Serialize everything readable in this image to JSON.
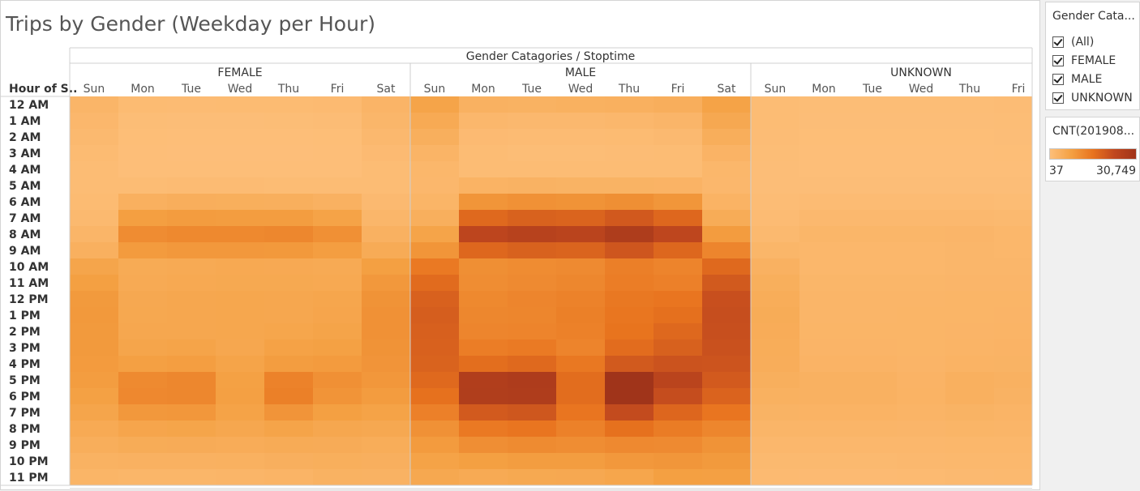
{
  "title": "Trips by Gender (Weekday per Hour)",
  "chart_data": {
    "type": "heatmap",
    "title": "Trips by Gender (Weekday per Hour)",
    "column_header": "Gender Catagories / Stoptime",
    "row_header": "Hour of S..",
    "rows": [
      "12 AM",
      "1 AM",
      "2 AM",
      "3 AM",
      "4 AM",
      "5 AM",
      "6 AM",
      "7 AM",
      "8 AM",
      "9 AM",
      "10 AM",
      "11 AM",
      "12 PM",
      "1 PM",
      "2 PM",
      "3 PM",
      "4 PM",
      "5 PM",
      "6 PM",
      "7 PM",
      "8 PM",
      "9 PM",
      "10 PM",
      "11 PM"
    ],
    "groups": [
      {
        "name": "FEMALE",
        "days": [
          "Sun",
          "Mon",
          "Tue",
          "Wed",
          "Thu",
          "Fri",
          "Sat"
        ]
      },
      {
        "name": "MALE",
        "days": [
          "Sun",
          "Mon",
          "Tue",
          "Wed",
          "Thu",
          "Fri",
          "Sat"
        ]
      },
      {
        "name": "UNKNOWN",
        "days": [
          "Sun",
          "Mon",
          "Tue",
          "Wed",
          "Thu",
          "Fri"
        ]
      }
    ],
    "color_range": [
      37,
      30749
    ],
    "color_scale": [
      "#fdbf7a",
      "#f4a042",
      "#e8731e",
      "#c0471e",
      "#a0341a"
    ],
    "values": {
      "FEMALE": [
        [
          2500,
          1100,
          1000,
          1100,
          1100,
          1300,
          2700
        ],
        [
          1900,
          600,
          500,
          500,
          600,
          700,
          2200
        ],
        [
          1500,
          400,
          300,
          300,
          300,
          400,
          1700
        ],
        [
          1100,
          300,
          200,
          200,
          200,
          300,
          1200
        ],
        [
          800,
          300,
          300,
          300,
          300,
          300,
          900
        ],
        [
          800,
          900,
          1000,
          1000,
          900,
          900,
          800
        ],
        [
          1100,
          3800,
          4200,
          4100,
          4000,
          3500,
          1400
        ],
        [
          1600,
          7900,
          8400,
          8200,
          8200,
          7000,
          2200
        ],
        [
          2500,
          11100,
          11700,
          11700,
          12000,
          10400,
          3500
        ],
        [
          3800,
          8500,
          9000,
          9000,
          8900,
          8000,
          5000
        ],
        [
          6500,
          5100,
          5300,
          5500,
          5400,
          5200,
          7800
        ],
        [
          7700,
          5200,
          5500,
          5600,
          5600,
          5500,
          9000
        ],
        [
          8700,
          5700,
          6000,
          6100,
          6000,
          6200,
          10000
        ],
        [
          8900,
          5800,
          5900,
          6100,
          6000,
          6400,
          10200
        ],
        [
          8800,
          6000,
          6000,
          6100,
          6300,
          6800,
          10200
        ],
        [
          8700,
          6500,
          6800,
          5900,
          7200,
          7400,
          10000
        ],
        [
          8600,
          7600,
          8000,
          6700,
          8200,
          8600,
          9700
        ],
        [
          8200,
          11500,
          12000,
          7400,
          12800,
          10500,
          9200
        ],
        [
          7500,
          11800,
          12000,
          7600,
          13200,
          9800,
          8400
        ],
        [
          6500,
          9000,
          9300,
          7000,
          9700,
          7800,
          7000
        ],
        [
          5200,
          6400,
          6600,
          5900,
          6700,
          6000,
          5700
        ],
        [
          4300,
          4800,
          4900,
          4700,
          5000,
          4900,
          4600
        ],
        [
          3300,
          3400,
          3500,
          3600,
          3900,
          4100,
          3900
        ],
        [
          2600,
          2300,
          2300,
          2500,
          2800,
          3300,
          3200
        ]
      ],
      "MALE": [
        [
          6800,
          3500,
          3300,
          3600,
          3700,
          4200,
          7000
        ],
        [
          5200,
          1900,
          1700,
          1700,
          2000,
          2400,
          5700
        ],
        [
          4000,
          1200,
          1000,
          1000,
          1100,
          1400,
          4300
        ],
        [
          2800,
          800,
          600,
          600,
          700,
          900,
          2900
        ],
        [
          2100,
          900,
          800,
          800,
          800,
          900,
          2100
        ],
        [
          2000,
          3000,
          3200,
          3100,
          3100,
          2900,
          2000
        ],
        [
          2600,
          9600,
          10200,
          10000,
          10700,
          9500,
          3000
        ],
        [
          4000,
          17200,
          18400,
          18000,
          19900,
          17400,
          4800
        ],
        [
          6700,
          23700,
          25200,
          24400,
          27300,
          23600,
          8400
        ],
        [
          9600,
          17400,
          18400,
          18000,
          20400,
          17500,
          12300
        ],
        [
          14400,
          10700,
          11100,
          11400,
          13300,
          12500,
          17200
        ],
        [
          16800,
          11000,
          11400,
          11900,
          13700,
          13100,
          19800
        ],
        [
          18500,
          11700,
          12300,
          12900,
          14600,
          15000,
          21600
        ],
        [
          19000,
          12000,
          12200,
          13200,
          14900,
          16000,
          21900
        ],
        [
          18700,
          12300,
          12500,
          13000,
          15300,
          17300,
          21700
        ],
        [
          18500,
          13700,
          14200,
          12500,
          16600,
          18600,
          21300
        ],
        [
          18200,
          16300,
          17200,
          14600,
          19800,
          20900,
          20800
        ],
        [
          17200,
          26700,
          27400,
          16500,
          30700,
          24400,
          19700
        ],
        [
          15700,
          26800,
          27100,
          16500,
          30749,
          22100,
          18100
        ],
        [
          13100,
          19700,
          20300,
          15000,
          22400,
          17600,
          15000
        ],
        [
          10300,
          14400,
          15000,
          13000,
          15800,
          13800,
          12200
        ],
        [
          8500,
          10800,
          11300,
          10900,
          11600,
          11400,
          10000
        ],
        [
          7000,
          7800,
          8200,
          8200,
          9000,
          9500,
          8700
        ],
        [
          5800,
          5200,
          5600,
          5700,
          6300,
          7700,
          7600
        ]
      ],
      "UNKNOWN": [
        [
          900,
          600,
          600,
          600,
          600,
          700
        ],
        [
          800,
          500,
          500,
          500,
          500,
          600
        ],
        [
          700,
          400,
          400,
          400,
          400,
          500
        ],
        [
          600,
          300,
          300,
          300,
          300,
          400
        ],
        [
          500,
          300,
          300,
          300,
          300,
          300
        ],
        [
          500,
          500,
          500,
          500,
          500,
          500
        ],
        [
          700,
          1000,
          1000,
          1000,
          1000,
          900
        ],
        [
          1000,
          1700,
          1700,
          1700,
          1700,
          1500
        ],
        [
          1600,
          2300,
          2300,
          2300,
          2400,
          2100
        ],
        [
          2300,
          2100,
          2100,
          2100,
          2200,
          2100
        ],
        [
          3400,
          2100,
          2100,
          2100,
          2200,
          2200
        ],
        [
          4100,
          2300,
          2300,
          2300,
          2400,
          2400
        ],
        [
          4600,
          2500,
          2500,
          2500,
          2600,
          2600
        ],
        [
          4800,
          2500,
          2500,
          2600,
          2600,
          2700
        ],
        [
          4700,
          2600,
          2600,
          2600,
          2700,
          2800
        ],
        [
          4600,
          2700,
          2700,
          2600,
          2800,
          2900
        ],
        [
          4400,
          2900,
          2900,
          2700,
          3000,
          3100
        ],
        [
          4000,
          3500,
          3500,
          2900,
          3700,
          3400
        ],
        [
          3600,
          3500,
          3500,
          3000,
          3700,
          3200
        ],
        [
          3100,
          3000,
          3000,
          2800,
          3100,
          2800
        ],
        [
          2500,
          2500,
          2500,
          2400,
          2600,
          2500
        ],
        [
          2000,
          2000,
          2000,
          2000,
          2100,
          2100
        ],
        [
          1600,
          1600,
          1600,
          1700,
          1800,
          1800
        ],
        [
          1300,
          1200,
          1200,
          1300,
          1400,
          1500
        ]
      ]
    }
  },
  "filter": {
    "title": "Gender Cata...",
    "items": [
      {
        "label": "(All)",
        "checked": true
      },
      {
        "label": "FEMALE",
        "checked": true
      },
      {
        "label": "MALE",
        "checked": true
      },
      {
        "label": "UNKNOWN",
        "checked": true
      }
    ]
  },
  "legend": {
    "title": "CNT(201908...",
    "min_label": "37",
    "max_label": "30,749"
  }
}
